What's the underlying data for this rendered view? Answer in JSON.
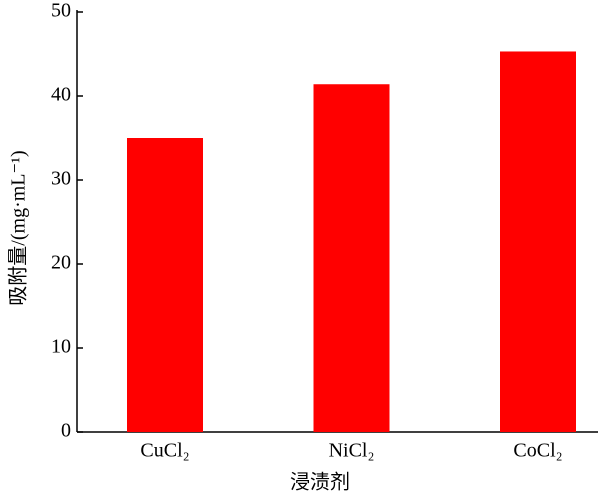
{
  "chart_data": {
    "type": "bar",
    "x_label": "浸渍剂",
    "y_label": "吸附量/(mg·mL⁻¹)",
    "categories": [
      "CuCl₂",
      "NiCl₂",
      "CoCl₂"
    ],
    "values": [
      35,
      41.4,
      45.3
    ],
    "color": "#ff0000",
    "ylim": [
      0,
      50
    ],
    "yticks": [
      0,
      10,
      20,
      30,
      40,
      50
    ],
    "grid": false
  }
}
